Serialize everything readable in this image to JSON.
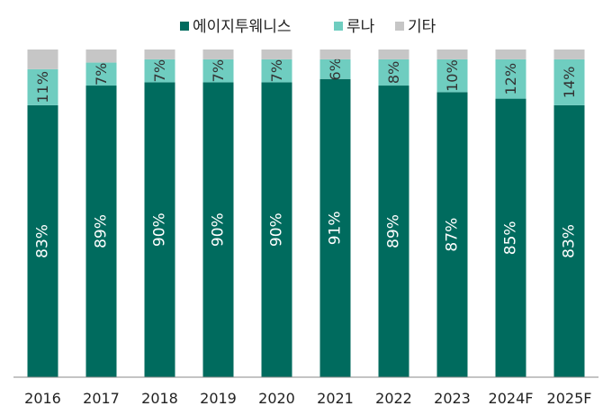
{
  "chart_data": {
    "type": "bar",
    "stacked": true,
    "percent": true,
    "categories": [
      "2016",
      "2017",
      "2018",
      "2019",
      "2020",
      "2021",
      "2022",
      "2023",
      "2024F",
      "2025F"
    ],
    "series": [
      {
        "name": "에이지투웨니스",
        "color": "#006b5e",
        "values": [
          83,
          89,
          90,
          90,
          90,
          91,
          89,
          87,
          85,
          83
        ],
        "labels": [
          "83%",
          "89%",
          "90%",
          "90%",
          "90%",
          "91%",
          "89%",
          "87%",
          "85%",
          "83%"
        ]
      },
      {
        "name": "루나",
        "color": "#6fcdc0",
        "values": [
          11,
          7,
          7,
          7,
          7,
          6,
          8,
          10,
          12,
          14
        ],
        "labels": [
          "11%",
          "7%",
          "7%",
          "7%",
          "7%",
          "6%",
          "8%",
          "10%",
          "12%",
          "14%"
        ]
      },
      {
        "name": "기타",
        "color": "#c6c6c6",
        "values": [
          6,
          4,
          3,
          3,
          3,
          3,
          3,
          3,
          3,
          3
        ]
      }
    ],
    "ylim": [
      0,
      100
    ],
    "grid": false,
    "legend_position": "top-center"
  }
}
